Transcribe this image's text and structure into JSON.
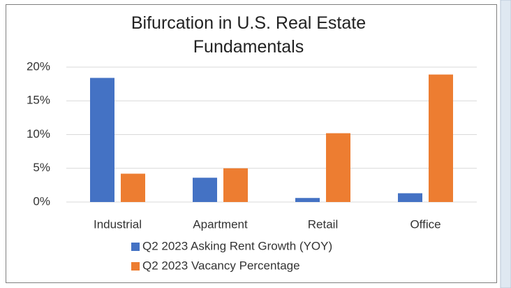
{
  "chart_data": {
    "type": "bar",
    "title": "Bifurcation in U.S. Real Estate Fundamentals",
    "categories": [
      "Industrial",
      "Apartment",
      "Retail",
      "Office"
    ],
    "series": [
      {
        "name": "Q2 2023 Asking Rent Growth (YOY)",
        "color": "#4472c4",
        "values": [
          18.4,
          3.6,
          0.6,
          1.3
        ]
      },
      {
        "name": "Q2 2023 Vacancy Percentage",
        "color": "#ed7d31",
        "values": [
          4.2,
          5.0,
          10.2,
          18.9
        ]
      }
    ],
    "ylim": [
      0,
      20
    ],
    "yticks": [
      {
        "value": 0,
        "label": "0%"
      },
      {
        "value": 5,
        "label": "5%"
      },
      {
        "value": 10,
        "label": "10%"
      },
      {
        "value": 15,
        "label": "15%"
      },
      {
        "value": 20,
        "label": "20%"
      }
    ],
    "grid": true,
    "legend": "bottom"
  }
}
